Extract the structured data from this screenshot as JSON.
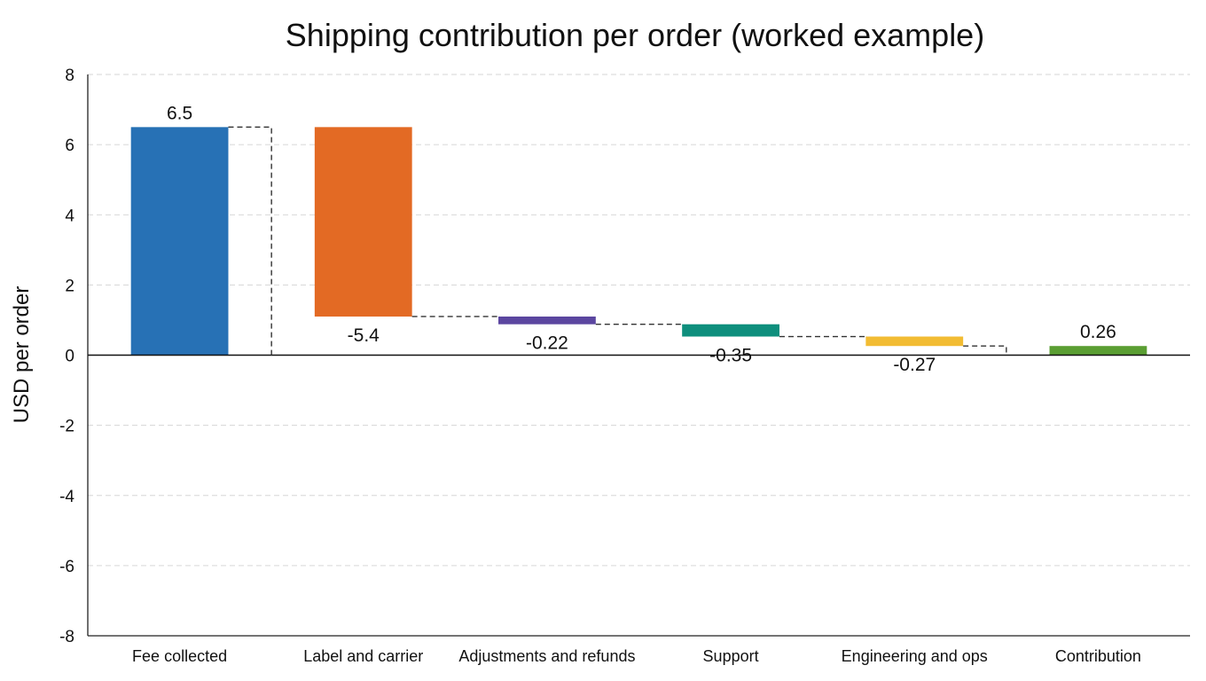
{
  "chart_data": {
    "type": "bar",
    "subtype": "waterfall",
    "title": "Shipping contribution per order (worked example)",
    "xlabel": "",
    "ylabel": "USD per order",
    "ylim": [
      -8,
      8
    ],
    "yticks": [
      8,
      6,
      4,
      2,
      0,
      -2,
      -4,
      -6,
      -8
    ],
    "grid": true,
    "categories": [
      "Fee collected",
      "Label and carrier",
      "Adjustments and refunds",
      "Support",
      "Engineering and ops",
      "Contribution"
    ],
    "values": [
      6.5,
      -5.4,
      -0.22,
      -0.35,
      -0.27,
      0.26
    ],
    "value_labels": [
      "6.5",
      "-5.4",
      "-0.22",
      "-0.35",
      "-0.27",
      "0.26"
    ],
    "bar_roles": [
      "increase",
      "decrease",
      "decrease",
      "decrease",
      "decrease",
      "total"
    ],
    "colors": [
      "#2771b5",
      "#e36a24",
      "#5b46a0",
      "#0f8f7d",
      "#f2bc33",
      "#5a9e32"
    ]
  }
}
